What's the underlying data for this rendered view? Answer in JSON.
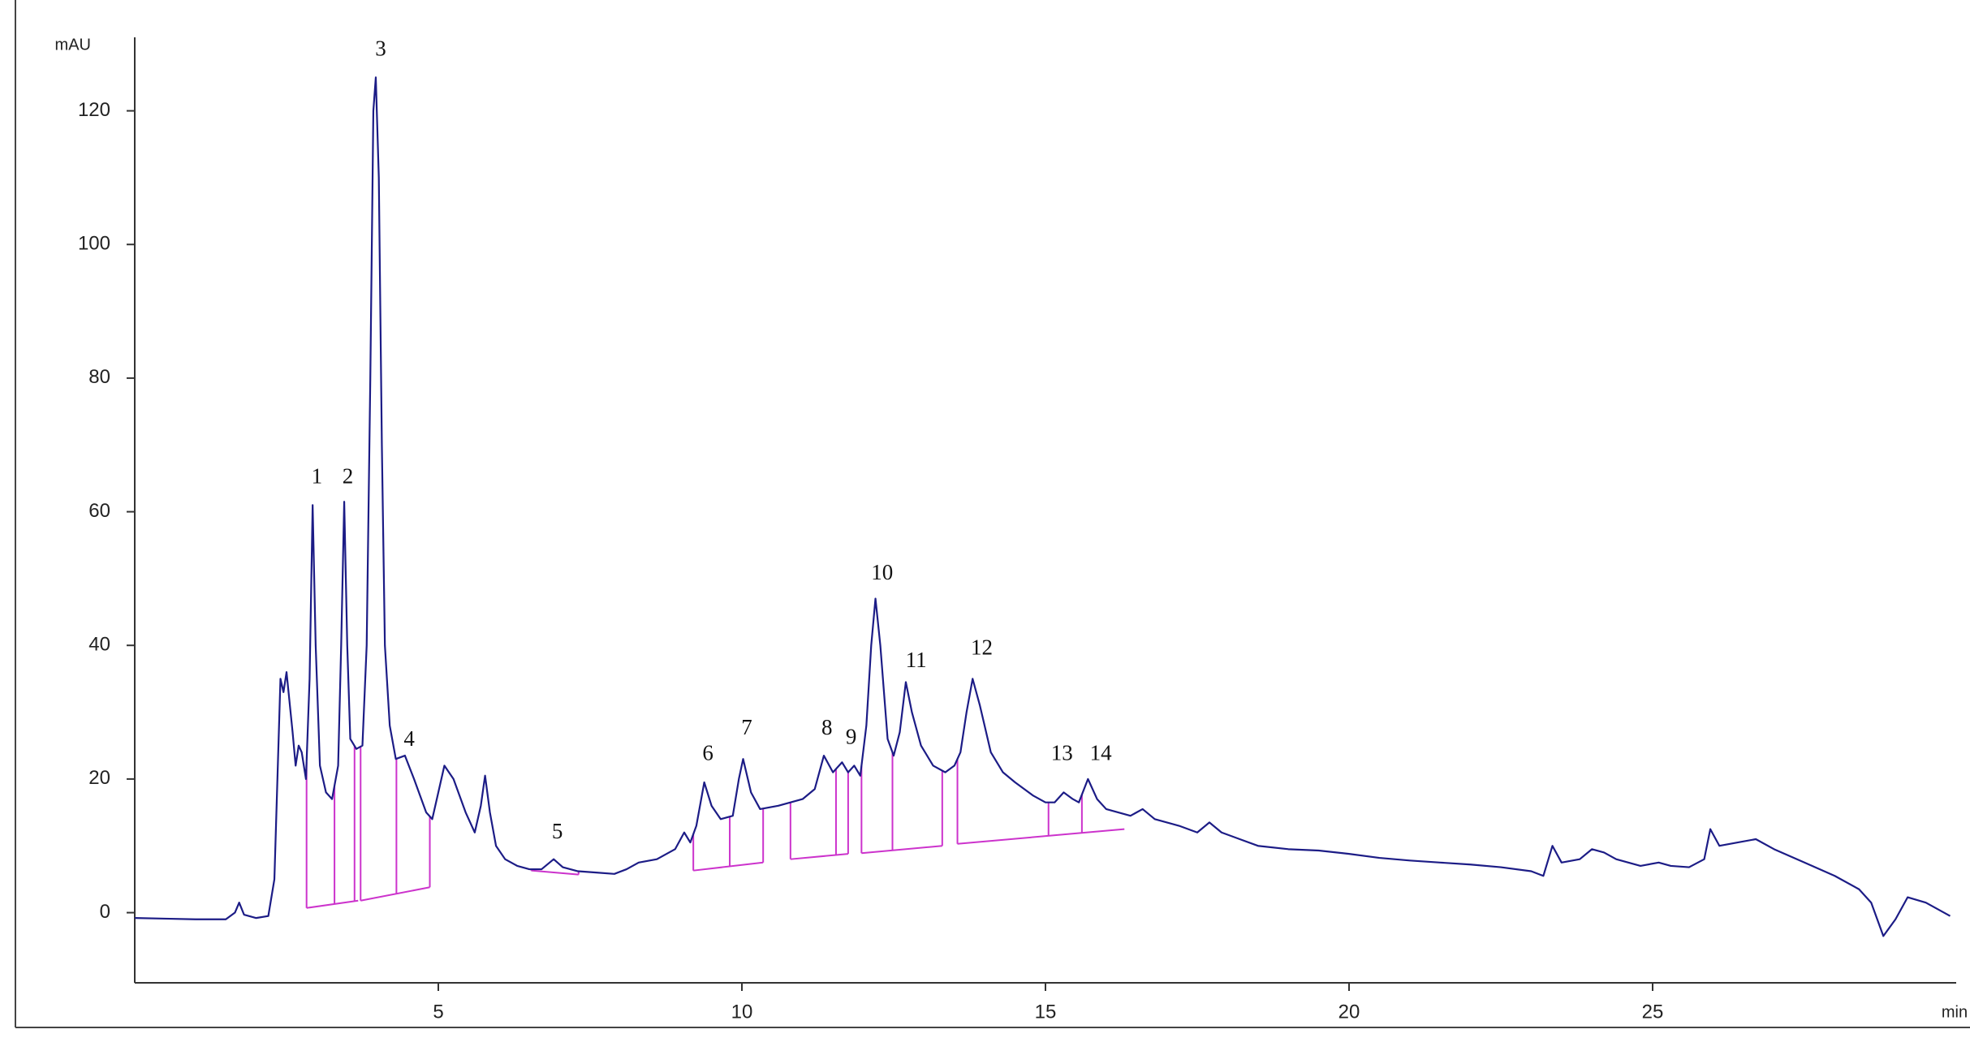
{
  "chart_data": {
    "type": "line",
    "y_label": "mAU",
    "x_label": "min",
    "color": "#1c1c86",
    "integration_color": "#cc33cc",
    "xlim": [
      0,
      30
    ],
    "xticks": [
      5,
      10,
      15,
      20,
      25
    ],
    "ylim": [
      -10.5,
      131
    ],
    "yticks": [
      0,
      20,
      40,
      60,
      80,
      100,
      120
    ],
    "x": [
      0,
      0.5,
      1.0,
      1.5,
      1.65,
      1.72,
      1.8,
      2.0,
      2.2,
      2.3,
      2.35,
      2.4,
      2.45,
      2.5,
      2.6,
      2.65,
      2.7,
      2.75,
      2.82,
      2.88,
      2.93,
      2.98,
      3.05,
      3.15,
      3.25,
      3.35,
      3.4,
      3.45,
      3.5,
      3.55,
      3.65,
      3.75,
      3.82,
      3.88,
      3.93,
      3.97,
      4.02,
      4.07,
      4.12,
      4.2,
      4.3,
      4.45,
      4.6,
      4.8,
      4.9,
      5.0,
      5.1,
      5.25,
      5.45,
      5.6,
      5.7,
      5.77,
      5.85,
      5.95,
      6.1,
      6.3,
      6.5,
      6.7,
      6.9,
      7.05,
      7.3,
      7.6,
      7.9,
      8.1,
      8.3,
      8.6,
      8.9,
      9.05,
      9.15,
      9.25,
      9.38,
      9.5,
      9.65,
      9.85,
      9.95,
      10.02,
      10.15,
      10.3,
      10.6,
      10.8,
      11.0,
      11.2,
      11.35,
      11.5,
      11.65,
      11.75,
      11.85,
      11.95,
      12.05,
      12.13,
      12.2,
      12.28,
      12.4,
      12.5,
      12.6,
      12.7,
      12.8,
      12.95,
      13.15,
      13.35,
      13.5,
      13.6,
      13.7,
      13.8,
      13.92,
      14.1,
      14.3,
      14.5,
      14.8,
      15.0,
      15.15,
      15.3,
      15.45,
      15.55,
      15.7,
      15.85,
      16.0,
      16.2,
      16.4,
      16.6,
      16.8,
      17.2,
      17.5,
      17.7,
      17.9,
      18.2,
      18.5,
      19.0,
      19.5,
      20.0,
      20.5,
      21.0,
      21.5,
      22.0,
      22.5,
      23.0,
      23.2,
      23.35,
      23.5,
      23.8,
      24.0,
      24.2,
      24.4,
      24.6,
      24.8,
      25.1,
      25.3,
      25.6,
      25.85,
      25.95,
      26.1,
      26.4,
      26.7,
      27.0,
      27.5,
      28.0,
      28.4,
      28.6,
      28.8,
      29.0,
      29.2,
      29.5,
      29.9
    ],
    "values": [
      -0.8,
      -0.9,
      -1,
      -1,
      0,
      1.5,
      -0.3,
      -0.8,
      -0.5,
      5,
      20,
      35,
      33,
      36,
      27,
      22,
      25,
      24,
      20,
      35,
      61,
      40,
      22,
      18,
      17,
      22,
      40,
      61.5,
      40,
      26,
      24.5,
      25,
      40,
      80,
      120,
      125,
      110,
      70,
      40,
      28,
      23,
      23.5,
      20,
      15,
      14,
      18,
      22,
      20,
      15,
      12,
      16,
      20.5,
      15,
      10,
      8,
      7,
      6.5,
      6.5,
      8,
      6.8,
      6.2,
      6.0,
      5.8,
      6.5,
      7.5,
      8,
      9.5,
      12,
      10.5,
      13,
      19.5,
      16,
      14,
      14.5,
      20,
      23,
      18,
      15.5,
      16,
      16.5,
      17,
      18.5,
      23.5,
      21,
      22.5,
      21,
      22,
      20.5,
      28,
      40,
      47,
      40,
      26,
      23.5,
      27,
      34.5,
      30,
      25,
      22,
      21,
      22,
      24,
      30,
      35,
      31,
      24,
      21,
      19.5,
      17.5,
      16.5,
      16.5,
      18,
      17,
      16.5,
      20,
      17,
      15.5,
      15,
      14.5,
      15.5,
      14,
      13,
      12,
      13.5,
      12,
      11,
      10,
      9.5,
      9.3,
      8.8,
      8.2,
      7.8,
      7.5,
      7.2,
      6.8,
      6.2,
      5.5,
      10,
      7.5,
      8,
      9.5,
      9,
      8,
      7.5,
      7,
      7.5,
      7,
      6.8,
      8,
      12.5,
      10,
      10.5,
      11,
      9.5,
      7.5,
      5.5,
      3.5,
      1.5,
      -3.5,
      -1,
      2.3,
      1.5,
      -0.5
    ],
    "integration": [
      {
        "x": [
          2.83,
          3.68
        ],
        "y": [
          0.7,
          1.8
        ],
        "drops": [
          2.83,
          3.29,
          3.62
        ]
      },
      {
        "x": [
          3.72,
          4.86
        ],
        "y": [
          1.8,
          3.8
        ],
        "drops": [
          3.72,
          4.31,
          4.86
        ]
      },
      {
        "x": [
          6.53,
          7.31
        ],
        "y": [
          6.3,
          5.7
        ],
        "drops": [
          6.53,
          7.31
        ]
      },
      {
        "x": [
          9.2,
          10.35
        ],
        "y": [
          6.3,
          7.5
        ],
        "drops": [
          9.2,
          9.8,
          10.35
        ]
      },
      {
        "x": [
          10.8,
          11.75
        ],
        "y": [
          8,
          8.8
        ],
        "drops": [
          10.8,
          11.55,
          11.75
        ]
      },
      {
        "x": [
          11.97,
          13.3
        ],
        "y": [
          8.9,
          10
        ],
        "drops": [
          11.97,
          12.48,
          13.3
        ]
      },
      {
        "x": [
          13.55,
          16.3
        ],
        "y": [
          10.3,
          12.5
        ],
        "drops": [
          13.55,
          15.05,
          15.6
        ]
      }
    ],
    "annotations": [
      {
        "text": "1",
        "x": 3.0,
        "y": 65
      },
      {
        "text": "2",
        "x": 3.51,
        "y": 65
      },
      {
        "text": "3",
        "x": 4.05,
        "y": 129
      },
      {
        "text": "4",
        "x": 4.52,
        "y": 25.7
      },
      {
        "text": "5",
        "x": 6.96,
        "y": 11.9
      },
      {
        "text": "6",
        "x": 9.44,
        "y": 23.6
      },
      {
        "text": "7",
        "x": 10.08,
        "y": 27.4
      },
      {
        "text": "8",
        "x": 11.4,
        "y": 27.4
      },
      {
        "text": "9",
        "x": 11.8,
        "y": 26
      },
      {
        "text": "10",
        "x": 12.31,
        "y": 50.6
      },
      {
        "text": "11",
        "x": 12.87,
        "y": 37.5
      },
      {
        "text": "12",
        "x": 13.95,
        "y": 39.4
      },
      {
        "text": "13",
        "x": 15.27,
        "y": 23.6
      },
      {
        "text": "14",
        "x": 15.91,
        "y": 23.6
      }
    ]
  }
}
